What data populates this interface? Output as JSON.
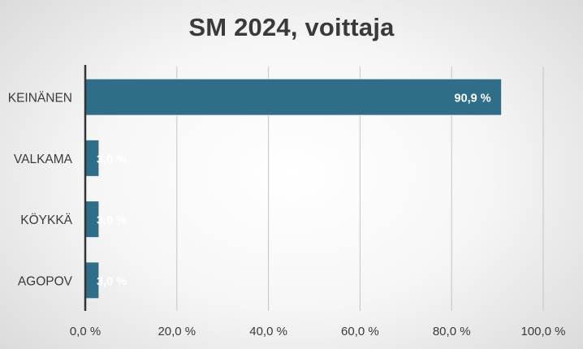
{
  "chart_data": {
    "type": "bar",
    "orientation": "horizontal",
    "title": "SM 2024, voittaja",
    "categories": [
      "KEINÄNEN",
      "VALKAMA",
      "KÖYKKÄ",
      "AGOPOV"
    ],
    "values": [
      90.9,
      3.0,
      3.0,
      3.0
    ],
    "data_labels": [
      "90,9 %",
      "3,0 %",
      "3,0 %",
      "3,0 %"
    ],
    "xlim": [
      0,
      100
    ],
    "x_ticks": [
      0,
      20,
      40,
      60,
      80,
      100
    ],
    "x_tick_labels": [
      "0,0 %",
      "20,0 %",
      "40,0 %",
      "60,0 %",
      "80,0 %",
      "100,0 %"
    ],
    "grid": "vertical",
    "legend": "none",
    "colors": {
      "bar": "#2f6e88",
      "bar_edge": "#f2f2f2",
      "axis": "#333333",
      "gridline": "#c4c4c4",
      "text": "#3a3a3a",
      "data_label": "#ffffff"
    }
  }
}
